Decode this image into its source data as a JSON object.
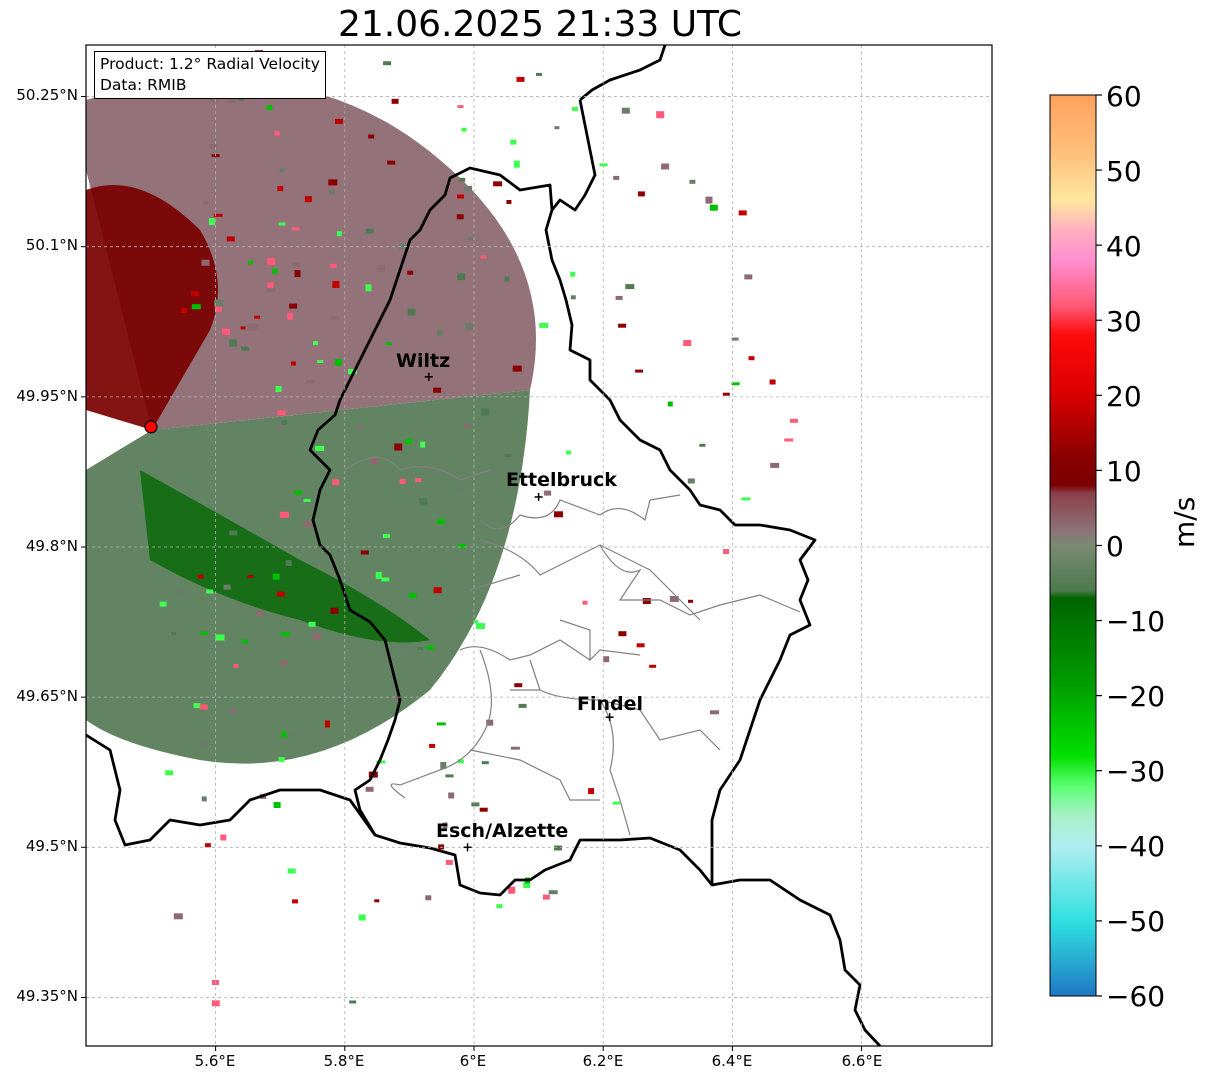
{
  "title": "21.06.2025 21:33 UTC",
  "info_box": {
    "product": "Product: 1.2° Radial Velocity",
    "source": "Data: RMIB"
  },
  "axes": {
    "lat_ticks": [
      "50.25°N",
      "50.1°N",
      "49.95°N",
      "49.8°N",
      "49.65°N",
      "49.5°N",
      "49.35°N"
    ],
    "lon_ticks": [
      "5.6°E",
      "5.8°E",
      "6°E",
      "6.2°E",
      "6.4°E",
      "6.6°E"
    ],
    "grid": true
  },
  "places": [
    {
      "name": "Wiltz",
      "lon": 5.93,
      "lat": 49.97
    },
    {
      "name": "Ettelbruck",
      "lon": 6.1,
      "lat": 49.85
    },
    {
      "name": "Findel",
      "lon": 6.21,
      "lat": 49.63
    },
    {
      "name": "Esch/Alzette",
      "lon": 5.99,
      "lat": 49.5
    }
  ],
  "radar_site": {
    "lon": 5.5,
    "lat": 49.92,
    "color": "#ff0000"
  },
  "colorbar": {
    "unit": "m/s",
    "ticks": [
      "60",
      "50",
      "40",
      "30",
      "20",
      "10",
      "0",
      "−10",
      "−20",
      "−30",
      "−40",
      "−50",
      "−60"
    ],
    "stops": [
      {
        "value": 60,
        "color": "#ffa15e"
      },
      {
        "value": 52,
        "color": "#ffc17d"
      },
      {
        "value": 46,
        "color": "#ffe7a0"
      },
      {
        "value": 42,
        "color": "#ffb0c0"
      },
      {
        "value": 38,
        "color": "#ff8fd0"
      },
      {
        "value": 32,
        "color": "#ff5a78"
      },
      {
        "value": 28,
        "color": "#ff0a0a"
      },
      {
        "value": 20,
        "color": "#d90000"
      },
      {
        "value": 12,
        "color": "#8b0000"
      },
      {
        "value": 8,
        "color": "#7a0000"
      },
      {
        "value": 7,
        "color": "#8a3f4a"
      },
      {
        "value": 2,
        "color": "#8d7278"
      },
      {
        "value": 0,
        "color": "#7a8a72"
      },
      {
        "value": -6,
        "color": "#4d7a4d"
      },
      {
        "value": -7,
        "color": "#006400"
      },
      {
        "value": -18,
        "color": "#009a00"
      },
      {
        "value": -28,
        "color": "#00e000"
      },
      {
        "value": -32,
        "color": "#5aff70"
      },
      {
        "value": -36,
        "color": "#a8f0c8"
      },
      {
        "value": -40,
        "color": "#b0eef0"
      },
      {
        "value": -50,
        "color": "#2fe0e0"
      },
      {
        "value": -54,
        "color": "#2ab8d6"
      },
      {
        "value": -60,
        "color": "#1f78c4"
      }
    ]
  },
  "colors": {
    "inbound_strong": "#7a0000",
    "inbound_weak": "#8d6a72",
    "outbound_weak": "#4f7a52",
    "outbound_strong": "#006a00",
    "border": "#000000",
    "district": "#808080"
  }
}
